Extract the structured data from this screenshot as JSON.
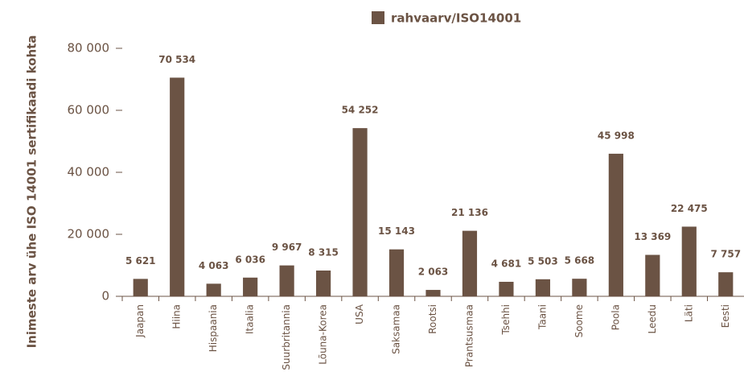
{
  "chart_data": {
    "type": "bar",
    "legend": "rahvaarv/ISO14001",
    "ylabel": "Inimeste arv ühe ISO 14001 sertifikaadi kohta",
    "categories": [
      "Jaapan",
      "Hiina",
      "Hispaania",
      "Itaalia",
      "Suurbritannia",
      "Lõuna-Korea",
      "USA",
      "Saksamaa",
      "Rootsi",
      "Prantsusmaa",
      "Tsehhi",
      "Taani",
      "Soome",
      "Poola",
      "Leedu",
      "Läti",
      "Eesti"
    ],
    "values": [
      5621,
      70534,
      4063,
      6036,
      9967,
      8315,
      54252,
      15143,
      2063,
      21136,
      4681,
      5503,
      5668,
      45998,
      13369,
      22475,
      7757
    ],
    "value_labels": [
      "5 621",
      "70 534",
      "4 063",
      "6 036",
      "9 967",
      "8 315",
      "54 252",
      "15 143",
      "2 063",
      "21 136",
      "4 681",
      "5 503",
      "5 668",
      "45 998",
      "13 369",
      "22 475",
      "7 757"
    ],
    "color": "#6b5344",
    "ylim": [
      0,
      80000
    ],
    "yticks": [
      0,
      {
        "value": 20000,
        "label": "20 000"
      },
      {
        "value": 40000,
        "label": "40 000"
      },
      {
        "value": 60000,
        "label": "60 000"
      },
      {
        "value": 80000,
        "label": "80 000"
      }
    ]
  }
}
